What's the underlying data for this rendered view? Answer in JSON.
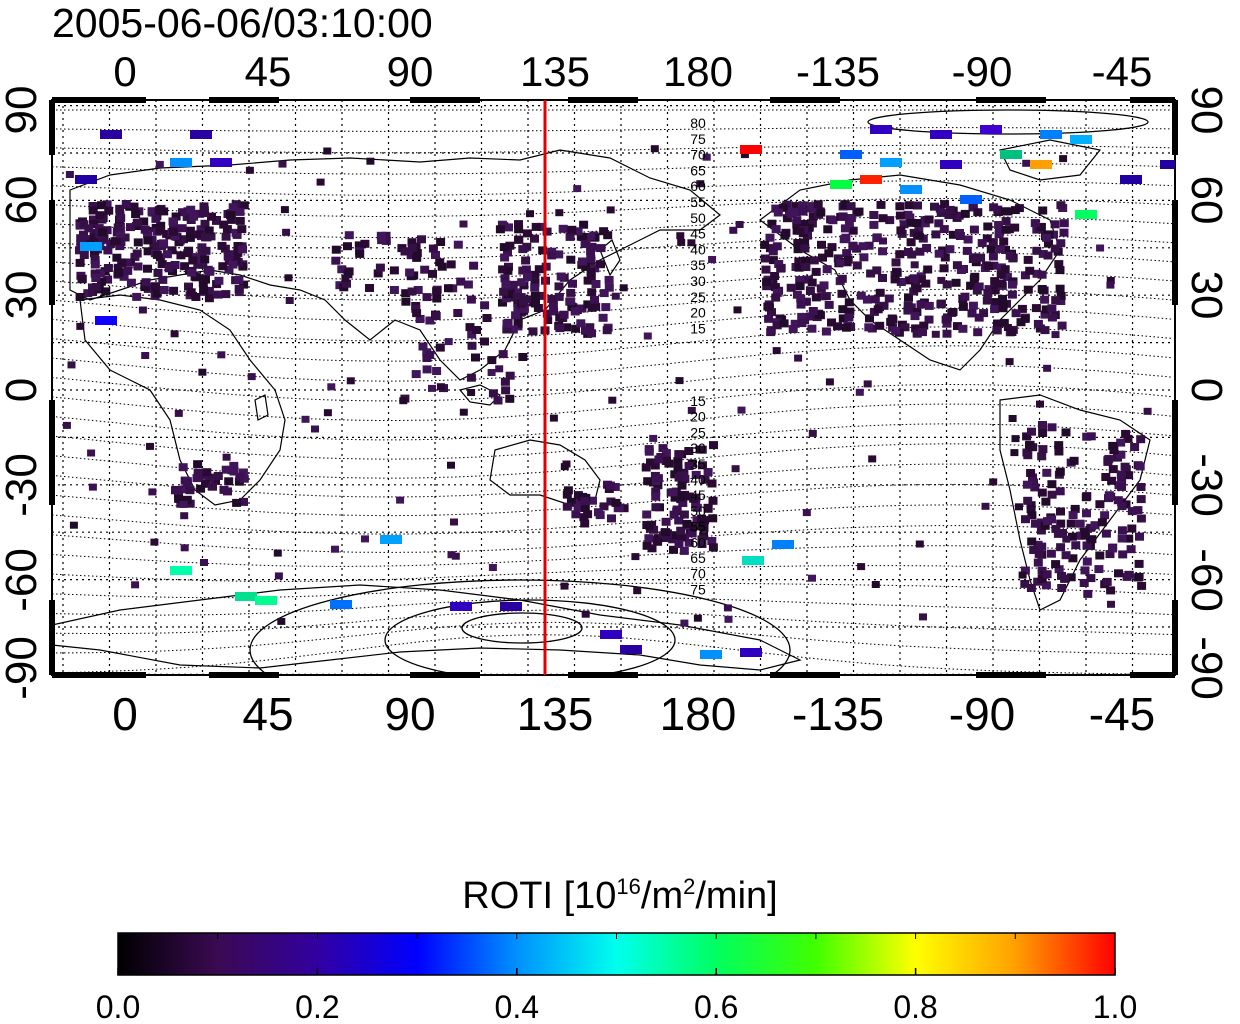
{
  "title": "2005-06-06/03:10:00",
  "map": {
    "top_lon_ticks": [
      "0",
      "45",
      "90",
      "135",
      "180",
      "-135",
      "-90",
      "-45"
    ],
    "bottom_lon_ticks": [
      "0",
      "45",
      "90",
      "135",
      "180",
      "-135",
      "-90",
      "-45"
    ],
    "left_lat_ticks": [
      "90",
      "60",
      "30",
      "0",
      "-30",
      "-60",
      "-90"
    ],
    "right_lat_ticks": [
      "90",
      "60",
      "30",
      "0",
      "-30",
      "-60",
      "-90"
    ],
    "vertical_marker_lon": 134,
    "marker_color": "#e00000",
    "contour_labels_north": [
      "80",
      "75",
      "70",
      "65",
      "60",
      "55",
      "50",
      "45",
      "40",
      "35",
      "30",
      "25",
      "20",
      "15"
    ],
    "contour_labels_south": [
      "15",
      "20",
      "25",
      "30",
      "35",
      "40",
      "45",
      "50",
      "55",
      "60",
      "65",
      "70",
      "75"
    ]
  },
  "colorbar": {
    "label_main": "ROTI  [10",
    "label_sup1": "16",
    "label_mid": "/m",
    "label_sup2": "2",
    "label_end": "/min]",
    "ticks": [
      "0.0",
      "0.2",
      "0.4",
      "0.6",
      "0.8",
      "1.0"
    ],
    "range": [
      0.0,
      1.0
    ],
    "colors": [
      "#000000",
      "#3a0a52",
      "#3200a0",
      "#0000ff",
      "#0090ff",
      "#00ffee",
      "#00ff60",
      "#40ff00",
      "#ffff00",
      "#ffa000",
      "#ff0000"
    ]
  }
}
